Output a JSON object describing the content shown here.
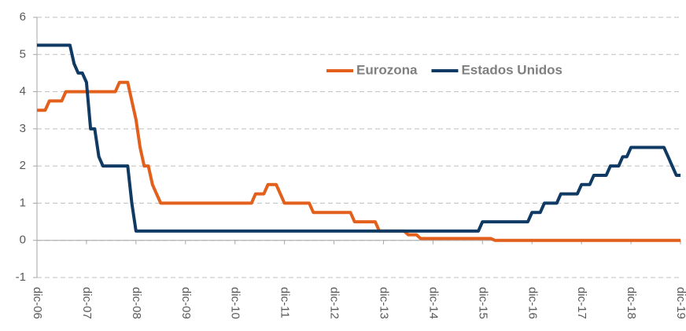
{
  "chart_data": {
    "type": "line",
    "xlim": [
      2006.917,
      2019.917
    ],
    "xticks": [
      {
        "value": 2006.917,
        "label": "dic-06"
      },
      {
        "value": 2007.917,
        "label": "dic-07"
      },
      {
        "value": 2008.917,
        "label": "dic-08"
      },
      {
        "value": 2009.917,
        "label": "dic-09"
      },
      {
        "value": 2010.917,
        "label": "dic-10"
      },
      {
        "value": 2011.917,
        "label": "dic-11"
      },
      {
        "value": 2012.917,
        "label": "dic-12"
      },
      {
        "value": 2013.917,
        "label": "dic-13"
      },
      {
        "value": 2014.917,
        "label": "dic-14"
      },
      {
        "value": 2015.917,
        "label": "dic-15"
      },
      {
        "value": 2016.917,
        "label": "dic-16"
      },
      {
        "value": 2017.917,
        "label": "dic-17"
      },
      {
        "value": 2018.917,
        "label": "dic-18"
      },
      {
        "value": 2019.917,
        "label": "dic-19"
      }
    ],
    "ylim": [
      -1,
      6
    ],
    "yticks": [
      -1,
      0,
      1,
      2,
      3,
      4,
      5,
      6
    ],
    "grid": true,
    "legend": "upper right",
    "series": [
      {
        "name": "Eurozona",
        "color": "#e2601c",
        "x": [
          2006.917,
          2007.083,
          2007.167,
          2007.417,
          2007.5,
          2008.5,
          2008.583,
          2008.75,
          2008.833,
          2008.917,
          2009.0,
          2009.083,
          2009.167,
          2009.25,
          2009.333,
          2009.417,
          2011.25,
          2011.333,
          2011.5,
          2011.583,
          2011.75,
          2011.833,
          2011.917,
          2012.417,
          2012.5,
          2013.25,
          2013.333,
          2013.75,
          2013.833,
          2014.333,
          2014.417,
          2014.583,
          2014.667,
          2016.083,
          2016.167,
          2019.917
        ],
        "values": [
          3.5,
          3.5,
          3.75,
          3.75,
          4.0,
          4.0,
          4.25,
          4.25,
          3.75,
          3.25,
          2.5,
          2.0,
          2.0,
          1.5,
          1.25,
          1.0,
          1.0,
          1.25,
          1.25,
          1.5,
          1.5,
          1.25,
          1.0,
          1.0,
          0.75,
          0.75,
          0.5,
          0.5,
          0.25,
          0.25,
          0.15,
          0.15,
          0.05,
          0.05,
          0,
          0
        ]
      },
      {
        "name": "Estados Unidos",
        "color": "#0f3a63",
        "x": [
          2006.917,
          2007.583,
          2007.667,
          2007.75,
          2007.833,
          2007.917,
          2008.0,
          2008.083,
          2008.167,
          2008.25,
          2008.75,
          2008.833,
          2008.917,
          2015.833,
          2015.917,
          2016.833,
          2016.917,
          2017.083,
          2017.167,
          2017.417,
          2017.5,
          2017.833,
          2017.917,
          2018.083,
          2018.167,
          2018.417,
          2018.5,
          2018.667,
          2018.75,
          2018.833,
          2018.917,
          2019.583,
          2019.667,
          2019.75,
          2019.833,
          2019.917
        ],
        "values": [
          5.25,
          5.25,
          4.75,
          4.5,
          4.5,
          4.25,
          3.0,
          3.0,
          2.25,
          2.0,
          2.0,
          1.0,
          0.25,
          0.25,
          0.5,
          0.5,
          0.75,
          0.75,
          1.0,
          1.0,
          1.25,
          1.25,
          1.5,
          1.5,
          1.75,
          1.75,
          2.0,
          2.0,
          2.25,
          2.25,
          2.5,
          2.5,
          2.25,
          2.0,
          1.75,
          1.75
        ]
      }
    ]
  }
}
